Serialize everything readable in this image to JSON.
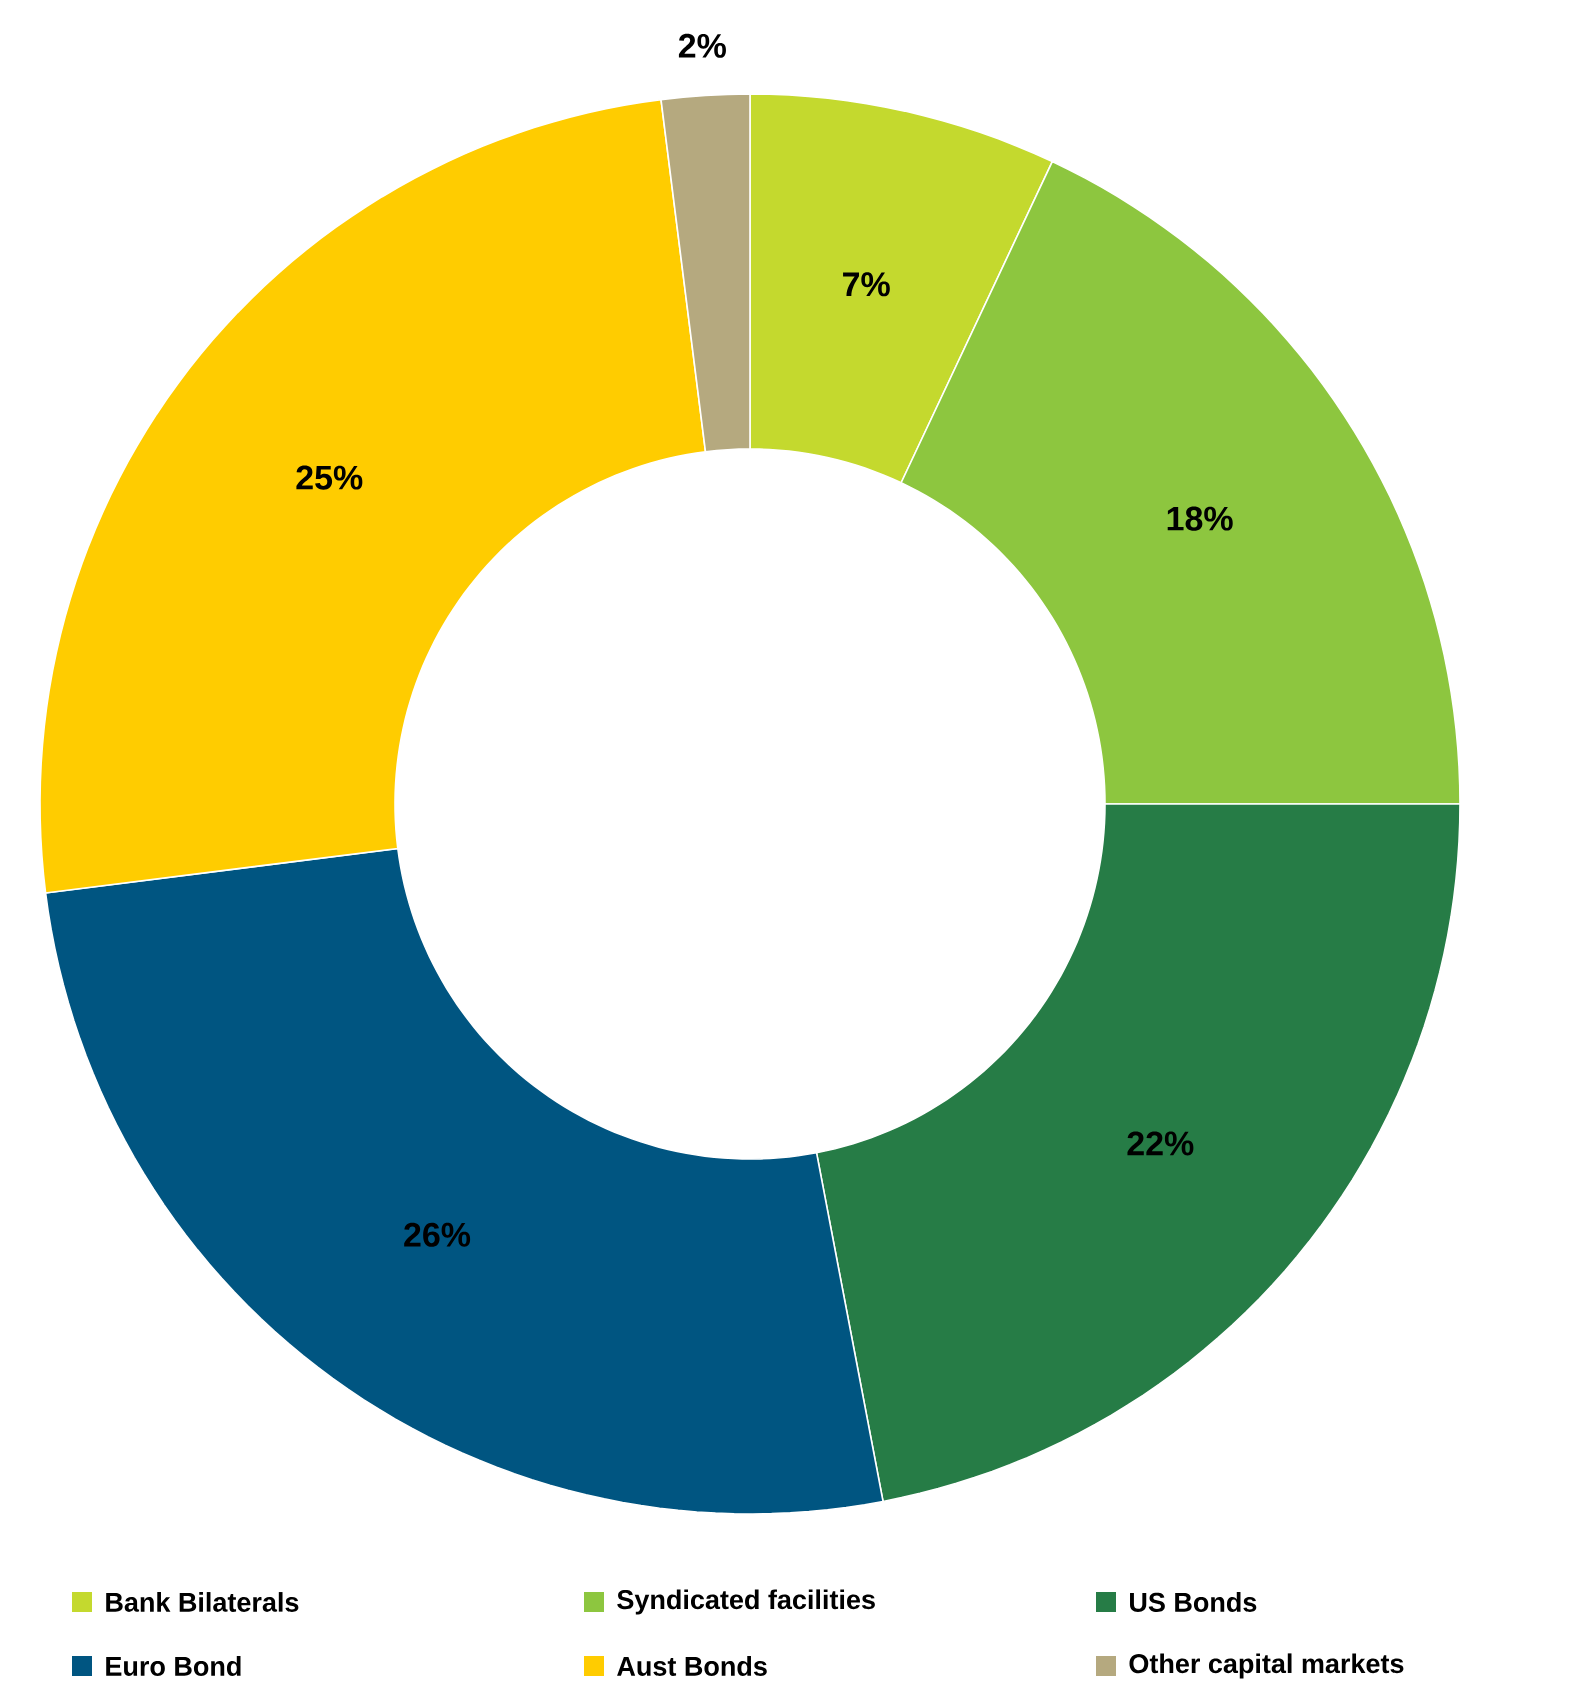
{
  "chart_data": {
    "type": "donut",
    "categories": [
      "Bank Bilaterals",
      "Syndicated facilities",
      "US Bonds",
      "Euro Bond",
      "Aust Bonds",
      "Other capital markets"
    ],
    "values": [
      7,
      18,
      22,
      26,
      25,
      2
    ],
    "value_labels": [
      "7%",
      "18%",
      "22%",
      "26%",
      "25%",
      "2%"
    ],
    "colors": [
      "#c4d92e",
      "#8dc63f",
      "#267c46",
      "#005581",
      "#ffcc00",
      "#b5a97f"
    ],
    "legend": "bottom"
  }
}
